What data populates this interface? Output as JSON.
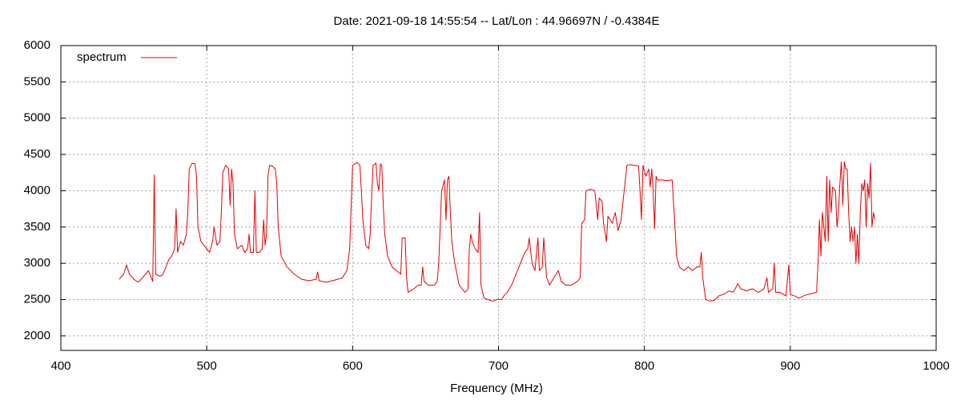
{
  "chart_data": {
    "type": "line",
    "title": "Date: 2021-09-18 14:55:54  --  Lat/Lon : 44.96697N / -0.4384E",
    "x_label": "Frequency (MHz)",
    "xlim": [
      400,
      1000
    ],
    "xticks": [
      400,
      500,
      600,
      700,
      800,
      900,
      1000
    ],
    "ylim": [
      1800,
      6000
    ],
    "yticks": [
      2000,
      2500,
      3000,
      3500,
      4000,
      4500,
      5000,
      5500,
      6000
    ],
    "grid": true,
    "legend": "top-left",
    "x": [
      440,
      443,
      445,
      447,
      450,
      453,
      456,
      458,
      460,
      462,
      463,
      464,
      465,
      468,
      470,
      472,
      474,
      476,
      478,
      479,
      480,
      482,
      484,
      486,
      487,
      488,
      490,
      492,
      493,
      494,
      496,
      498,
      500,
      502,
      504,
      505,
      507,
      509,
      510,
      511,
      513,
      515,
      516,
      517,
      518,
      519,
      521,
      524,
      526,
      528,
      529,
      530,
      532,
      533,
      534,
      536,
      538,
      539,
      540,
      541,
      542,
      543,
      545,
      547,
      548,
      549,
      551,
      555,
      560,
      565,
      570,
      575,
      576,
      577,
      582,
      588,
      593,
      596,
      598,
      599,
      600,
      603,
      605,
      606,
      607,
      609,
      611,
      612,
      613,
      614,
      616,
      617,
      618,
      619,
      620,
      621,
      622,
      624,
      627,
      630,
      633,
      634,
      636,
      637,
      638,
      642,
      645,
      647,
      648,
      649,
      652,
      656,
      658,
      659,
      660,
      661,
      663,
      664,
      665,
      666,
      667,
      668,
      670,
      673,
      677,
      679,
      680,
      681,
      682,
      684,
      686,
      687,
      688,
      690,
      693,
      696,
      699,
      702,
      704,
      706,
      709,
      712,
      715,
      718,
      720,
      721,
      723,
      725,
      727,
      728,
      730,
      731,
      733,
      735,
      738,
      741,
      743,
      746,
      750,
      754,
      756,
      757,
      759,
      760,
      763,
      766,
      768,
      769,
      771,
      772,
      774,
      775,
      778,
      780,
      782,
      784,
      788,
      790,
      793,
      796,
      797,
      798,
      799,
      801,
      803,
      804,
      805,
      806,
      807,
      808,
      809,
      812,
      815,
      819,
      821,
      822,
      824,
      827,
      830,
      833,
      836,
      838,
      839,
      840,
      842,
      845,
      848,
      851,
      855,
      858,
      861,
      864,
      866,
      870,
      874,
      878,
      882,
      884,
      885,
      888,
      889,
      890,
      893,
      897,
      899,
      900,
      903,
      906,
      910,
      914,
      918,
      919,
      920,
      921,
      922,
      924,
      925,
      926,
      927,
      928,
      929,
      931,
      932,
      933,
      934,
      935,
      936,
      937,
      938,
      939,
      940,
      941,
      942,
      943,
      944,
      945,
      946,
      947,
      948,
      949,
      950,
      951,
      952,
      953,
      954,
      955,
      956,
      957,
      958
    ],
    "series": [
      {
        "name": "spectrum",
        "color": "#e00000",
        "values": [
          2780,
          2850,
          2980,
          2850,
          2780,
          2740,
          2800,
          2850,
          2900,
          2800,
          2750,
          4220,
          2850,
          2820,
          2850,
          2950,
          3050,
          3100,
          3200,
          3750,
          3150,
          3300,
          3250,
          3400,
          3700,
          4300,
          4380,
          4370,
          4200,
          3500,
          3300,
          3250,
          3200,
          3150,
          3300,
          3500,
          3250,
          3300,
          3700,
          4250,
          4350,
          4300,
          3800,
          4300,
          4100,
          3400,
          3200,
          3250,
          3150,
          3200,
          3400,
          3150,
          3150,
          4000,
          3150,
          3150,
          3200,
          3600,
          3250,
          3400,
          4200,
          4350,
          4340,
          4300,
          4100,
          3500,
          3100,
          2950,
          2850,
          2780,
          2760,
          2780,
          2880,
          2760,
          2740,
          2770,
          2800,
          2900,
          3200,
          3800,
          4350,
          4390,
          4350,
          4000,
          3600,
          3250,
          3200,
          3400,
          3900,
          4350,
          4380,
          4100,
          4000,
          4370,
          4350,
          3800,
          3400,
          3100,
          2950,
          2900,
          2850,
          3350,
          3350,
          2800,
          2600,
          2650,
          2700,
          2700,
          2950,
          2750,
          2700,
          2700,
          2750,
          3000,
          3500,
          4000,
          4150,
          3600,
          4150,
          4200,
          3700,
          3300,
          3000,
          2700,
          2600,
          2640,
          3200,
          3400,
          3300,
          3200,
          3150,
          3700,
          2700,
          2520,
          2500,
          2480,
          2500,
          2500,
          2560,
          2600,
          2700,
          2850,
          3000,
          3150,
          3200,
          3350,
          3000,
          2900,
          3350,
          2900,
          2950,
          3350,
          2800,
          2700,
          2800,
          2900,
          2750,
          2700,
          2700,
          2750,
          2800,
          3550,
          3600,
          4000,
          4020,
          4000,
          3600,
          3900,
          3850,
          3550,
          3300,
          3650,
          3550,
          3700,
          3450,
          3600,
          4350,
          4360,
          4350,
          4340,
          4000,
          3600,
          4350,
          4200,
          4300,
          4050,
          4300,
          4000,
          3480,
          4200,
          4150,
          4150,
          4140,
          4150,
          3500,
          3100,
          2950,
          2900,
          2950,
          2900,
          2950,
          2950,
          3150,
          2800,
          2500,
          2480,
          2490,
          2550,
          2580,
          2620,
          2600,
          2720,
          2650,
          2620,
          2650,
          2600,
          2650,
          2800,
          2600,
          2650,
          3000,
          2600,
          2600,
          2550,
          2980,
          2570,
          2550,
          2520,
          2560,
          2580,
          2600,
          3000,
          3600,
          3100,
          3700,
          3300,
          4200,
          3300,
          4150,
          3700,
          4050,
          4000,
          3500,
          3700,
          4100,
          4400,
          3800,
          4400,
          4300,
          4300,
          3700,
          3300,
          3500,
          3300,
          3500,
          3000,
          3400,
          3000,
          3700,
          4100,
          4000,
          4150,
          3500,
          4100,
          3900,
          4380,
          3500,
          3700,
          3600
        ]
      }
    ]
  }
}
